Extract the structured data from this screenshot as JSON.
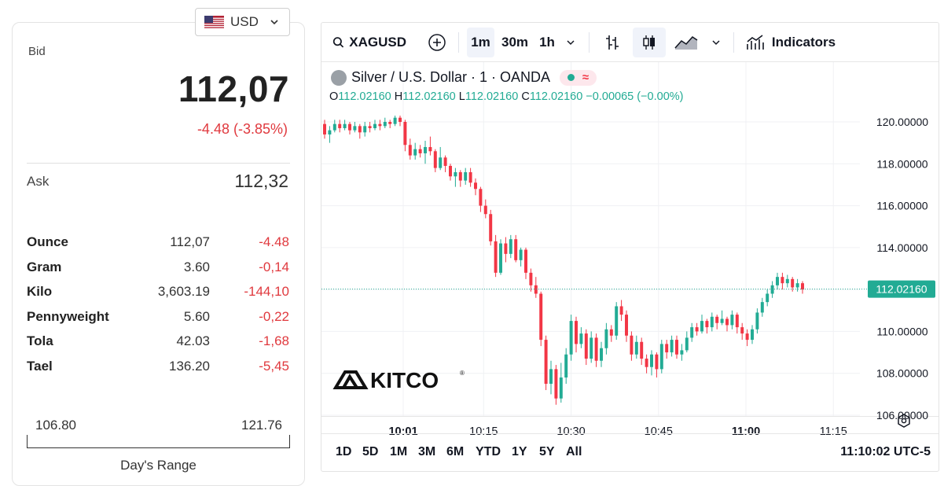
{
  "currency": {
    "code": "USD"
  },
  "quote": {
    "bid_label": "Bid",
    "bid": "112,07",
    "change": "-4.48 (-3.85%)",
    "ask_label": "Ask",
    "ask": "112,32"
  },
  "units": [
    {
      "name": "Ounce",
      "price": "112,07",
      "change": "-4.48"
    },
    {
      "name": "Gram",
      "price": "3.60",
      "change": "-0,14"
    },
    {
      "name": "Kilo",
      "price": "3,603.19",
      "change": "-144,10"
    },
    {
      "name": "Pennyweight",
      "price": "5.60",
      "change": "-0,22"
    },
    {
      "name": "Tola",
      "price": "42.03",
      "change": "-1,68"
    },
    {
      "name": "Tael",
      "price": "136.20",
      "change": "-5,45"
    }
  ],
  "day_range": {
    "low": "106.80",
    "high": "121.76",
    "label": "Day's Range"
  },
  "toolbar": {
    "symbol": "XAGUSD",
    "intervals": [
      "1m",
      "30m",
      "1h"
    ],
    "active_interval": "1m",
    "indicators_label": "Indicators"
  },
  "legend": {
    "title": "Silver / U.S. Dollar · 1 · OANDA",
    "o_label": "O",
    "o": "112.02160",
    "h_label": "H",
    "h": "112.02160",
    "l_label": "L",
    "l": "112.02160",
    "c_label": "C",
    "c": "112.02160",
    "chg": "−0.00065 (−0.00%)"
  },
  "watermark": "KITCO",
  "ranges": [
    "1D",
    "5D",
    "1M",
    "3M",
    "6M",
    "YTD",
    "1Y",
    "5Y",
    "All"
  ],
  "clock": "11:10:02 UTC-5",
  "colors": {
    "up": "#22ab94",
    "down": "#f23645",
    "accent_red": "#e0393e"
  },
  "chart_data": {
    "type": "candlestick",
    "y_ticks": [
      "120.00000",
      "118.00000",
      "116.00000",
      "114.00000",
      "112.00000",
      "110.00000",
      "108.00000",
      "106.00000"
    ],
    "ylim": [
      105.4,
      121.1
    ],
    "x_ticks": [
      {
        "label": "10:01",
        "t": 10.02,
        "bold": true
      },
      {
        "label": "10:15",
        "t": 10.25,
        "bold": false
      },
      {
        "label": "10:30",
        "t": 10.5,
        "bold": false
      },
      {
        "label": "10:45",
        "t": 10.75,
        "bold": false
      },
      {
        "label": "11:00",
        "t": 11.0,
        "bold": true
      },
      {
        "label": "11:15",
        "t": 11.25,
        "bold": false
      }
    ],
    "last_price": 112.0216,
    "last_price_label": "112.02160",
    "candles": [
      [
        119.9,
        119.4,
        120.1,
        119.2
      ],
      [
        119.4,
        119.6,
        119.8,
        119.0
      ],
      [
        119.6,
        119.9,
        120.1,
        119.5
      ],
      [
        119.9,
        119.7,
        120.1,
        119.5
      ],
      [
        119.7,
        119.9,
        120.1,
        119.6
      ],
      [
        119.9,
        119.6,
        120.0,
        119.4
      ],
      [
        119.6,
        119.8,
        120.0,
        119.5
      ],
      [
        119.8,
        119.5,
        119.9,
        119.2
      ],
      [
        119.5,
        119.8,
        120.0,
        119.3
      ],
      [
        119.8,
        119.7,
        120.0,
        119.5
      ],
      [
        119.7,
        119.9,
        120.1,
        119.6
      ],
      [
        119.9,
        119.8,
        120.1,
        119.6
      ],
      [
        119.8,
        120.0,
        120.2,
        119.7
      ],
      [
        120.0,
        119.9,
        120.1,
        119.7
      ],
      [
        119.9,
        120.2,
        120.3,
        119.8
      ],
      [
        120.2,
        120.0,
        120.3,
        119.8
      ],
      [
        120.0,
        118.9,
        120.1,
        118.6
      ],
      [
        118.9,
        118.4,
        119.2,
        118.2
      ],
      [
        118.4,
        118.7,
        119.0,
        118.2
      ],
      [
        118.7,
        118.5,
        118.9,
        118.3
      ],
      [
        118.5,
        118.8,
        119.1,
        118.0
      ],
      [
        118.8,
        118.6,
        119.3,
        118.4
      ],
      [
        118.6,
        117.8,
        118.7,
        117.6
      ],
      [
        117.8,
        118.3,
        118.8,
        117.7
      ],
      [
        118.3,
        117.9,
        118.4,
        117.6
      ],
      [
        117.9,
        117.4,
        118.0,
        117.2
      ],
      [
        117.4,
        117.6,
        117.8,
        116.9
      ],
      [
        117.6,
        117.2,
        117.7,
        116.9
      ],
      [
        117.2,
        117.6,
        117.8,
        117.0
      ],
      [
        117.6,
        117.1,
        117.8,
        116.9
      ],
      [
        117.1,
        116.8,
        117.3,
        116.5
      ],
      [
        116.8,
        116.0,
        116.9,
        115.7
      ],
      [
        116.0,
        115.6,
        116.3,
        115.4
      ],
      [
        115.6,
        114.3,
        115.8,
        114.1
      ],
      [
        114.3,
        112.8,
        114.6,
        112.6
      ],
      [
        112.8,
        114.2,
        114.4,
        112.7
      ],
      [
        114.2,
        113.7,
        114.5,
        113.3
      ],
      [
        113.7,
        114.4,
        114.6,
        113.5
      ],
      [
        114.4,
        113.4,
        114.6,
        113.3
      ],
      [
        113.4,
        113.9,
        114.0,
        113.1
      ],
      [
        113.9,
        112.8,
        114.0,
        112.5
      ],
      [
        112.8,
        112.2,
        113.0,
        111.9
      ],
      [
        112.2,
        111.8,
        112.6,
        111.6
      ],
      [
        111.8,
        109.6,
        111.9,
        109.3
      ],
      [
        109.6,
        107.5,
        109.8,
        107.2
      ],
      [
        107.5,
        108.2,
        108.6,
        107.0
      ],
      [
        108.2,
        106.8,
        108.4,
        106.5
      ],
      [
        106.8,
        107.8,
        108.5,
        106.6
      ],
      [
        107.8,
        108.9,
        109.2,
        107.5
      ],
      [
        108.9,
        110.5,
        110.8,
        108.6
      ],
      [
        110.5,
        109.4,
        110.7,
        109.0
      ],
      [
        109.4,
        109.9,
        110.2,
        109.2
      ],
      [
        109.9,
        108.7,
        110.1,
        108.4
      ],
      [
        108.7,
        109.7,
        110.0,
        108.5
      ],
      [
        109.7,
        108.6,
        109.9,
        108.3
      ],
      [
        108.6,
        109.2,
        109.5,
        108.3
      ],
      [
        109.2,
        110.1,
        110.4,
        108.9
      ],
      [
        110.1,
        109.8,
        110.3,
        109.5
      ],
      [
        109.8,
        111.2,
        111.4,
        109.6
      ],
      [
        111.2,
        110.8,
        111.5,
        110.5
      ],
      [
        110.8,
        109.8,
        111.0,
        109.5
      ],
      [
        109.8,
        108.9,
        110.0,
        108.6
      ],
      [
        108.9,
        109.5,
        109.8,
        108.7
      ],
      [
        109.5,
        108.7,
        109.7,
        108.4
      ],
      [
        108.7,
        108.3,
        108.9,
        108.0
      ],
      [
        108.3,
        108.9,
        109.1,
        107.9
      ],
      [
        108.9,
        108.2,
        109.0,
        107.8
      ],
      [
        108.2,
        109.4,
        109.6,
        108.0
      ],
      [
        109.4,
        109.0,
        109.6,
        108.7
      ],
      [
        109.0,
        109.6,
        109.8,
        108.8
      ],
      [
        109.6,
        108.9,
        109.8,
        108.7
      ],
      [
        108.9,
        109.1,
        109.4,
        108.6
      ],
      [
        109.1,
        109.7,
        110.0,
        109.0
      ],
      [
        109.7,
        110.2,
        110.4,
        109.5
      ],
      [
        110.2,
        110.0,
        110.4,
        109.8
      ],
      [
        110.0,
        110.5,
        110.8,
        109.9
      ],
      [
        110.5,
        110.2,
        110.6,
        109.9
      ],
      [
        110.2,
        110.7,
        110.9,
        110.0
      ],
      [
        110.7,
        110.4,
        110.8,
        110.1
      ],
      [
        110.4,
        110.6,
        111.0,
        110.3
      ],
      [
        110.6,
        110.3,
        110.7,
        110.0
      ],
      [
        110.3,
        110.8,
        111.0,
        110.1
      ],
      [
        110.8,
        110.2,
        110.9,
        109.9
      ],
      [
        110.2,
        109.9,
        110.4,
        109.6
      ],
      [
        109.9,
        109.6,
        110.1,
        109.3
      ],
      [
        109.6,
        110.1,
        110.3,
        109.4
      ],
      [
        110.1,
        110.9,
        111.1,
        109.9
      ],
      [
        110.9,
        111.4,
        111.6,
        110.7
      ],
      [
        111.4,
        111.8,
        112.0,
        111.2
      ],
      [
        111.8,
        112.2,
        112.4,
        111.6
      ],
      [
        112.2,
        112.6,
        112.8,
        112.0
      ],
      [
        112.6,
        112.3,
        112.8,
        112.0
      ],
      [
        112.3,
        112.5,
        112.7,
        112.1
      ],
      [
        112.5,
        112.1,
        112.6,
        111.9
      ],
      [
        112.1,
        112.3,
        112.5,
        111.9
      ],
      [
        112.3,
        112.0,
        112.4,
        111.8
      ]
    ]
  }
}
